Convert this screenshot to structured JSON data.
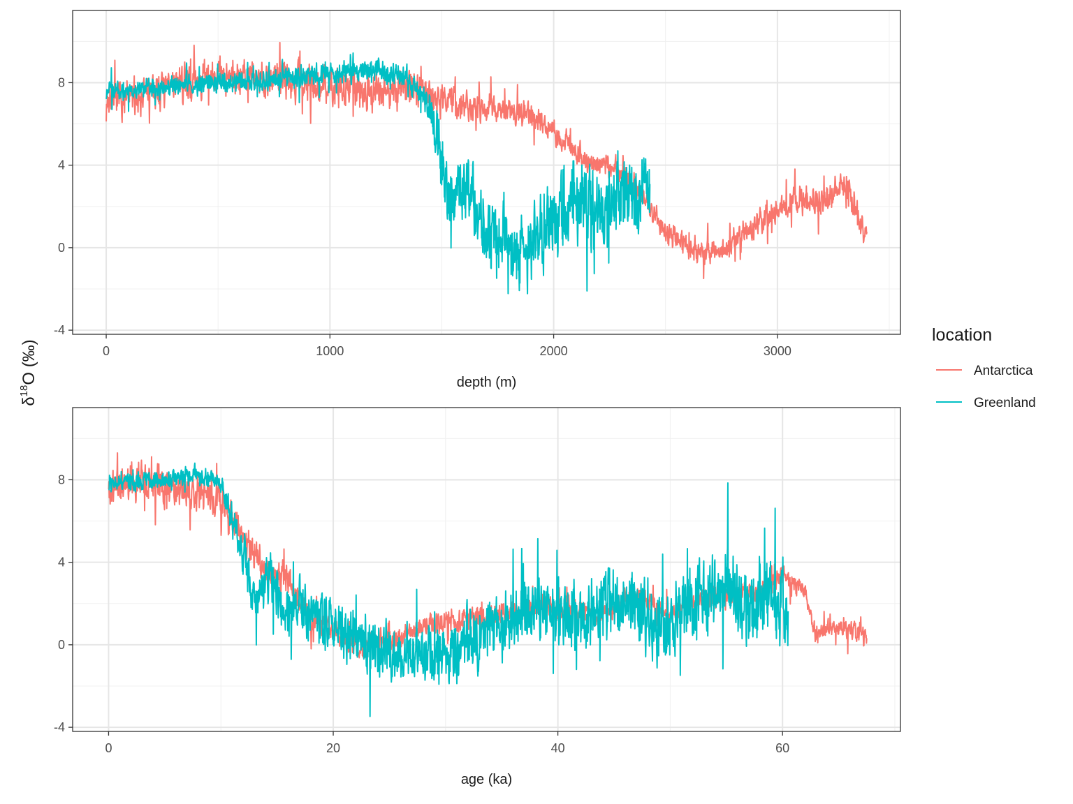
{
  "chart_data": {
    "shared_ylabel": {
      "symbol": "δ",
      "superscript": "18",
      "rest": "O (‰)"
    },
    "legend": {
      "title": "location",
      "placement": "right",
      "entries": [
        {
          "label": "Antarctica",
          "color": "#F8766D"
        },
        {
          "label": "Greenland",
          "color": "#00BFC4"
        }
      ]
    },
    "panels": [
      {
        "type": "line",
        "xlabel": "depth (m)",
        "xlim": [
          -150,
          3550
        ],
        "ylim": [
          -4.2,
          11.5
        ],
        "xticks": [
          0,
          1000,
          2000,
          3000
        ],
        "xtick_labels": [
          "0",
          "1000",
          "2000",
          "3000"
        ],
        "yticks": [
          -4,
          0,
          4,
          8
        ],
        "ytick_labels": [
          "-4",
          "0",
          "4",
          "8"
        ],
        "grid": true,
        "series": [
          {
            "name": "Antarctica",
            "color": "#F8766D",
            "x_start": 0,
            "x_end": 3400,
            "trend": [
              [
                0,
                7.0
              ],
              [
                300,
                7.9
              ],
              [
                600,
                8.4
              ],
              [
                900,
                8.1
              ],
              [
                1100,
                7.6
              ],
              [
                1350,
                7.8
              ],
              [
                1600,
                6.9
              ],
              [
                1900,
                6.5
              ],
              [
                2050,
                5.2
              ],
              [
                2150,
                4.2
              ],
              [
                2300,
                3.8
              ],
              [
                2420,
                2.2
              ],
              [
                2500,
                0.8
              ],
              [
                2650,
                -0.3
              ],
              [
                2750,
                -0.2
              ],
              [
                2900,
                1.2
              ],
              [
                3000,
                1.8
              ],
              [
                3100,
                2.4
              ],
              [
                3200,
                2.1
              ],
              [
                3300,
                3.2
              ],
              [
                3370,
                1.2
              ],
              [
                3400,
                0.4
              ]
            ],
            "noise": [
              [
                0,
                0.9
              ],
              [
                1300,
                1.0
              ],
              [
                1500,
                0.8
              ],
              [
                2000,
                0.6
              ],
              [
                2450,
                0.6
              ],
              [
                3400,
                0.8
              ]
            ],
            "seed": 7,
            "n": 2200
          },
          {
            "name": "Greenland",
            "color": "#00BFC4",
            "x_start": 0,
            "x_end": 2430,
            "trend": [
              [
                0,
                7.6
              ],
              [
                400,
                7.9
              ],
              [
                900,
                8.3
              ],
              [
                1200,
                8.6
              ],
              [
                1350,
                8.2
              ],
              [
                1440,
                7.0
              ],
              [
                1500,
                4.2
              ],
              [
                1530,
                2.0
              ],
              [
                1600,
                3.0
              ],
              [
                1700,
                0.8
              ],
              [
                1850,
                -0.5
              ],
              [
                1950,
                0.8
              ],
              [
                2000,
                1.5
              ],
              [
                2100,
                2.4
              ],
              [
                2200,
                1.2
              ],
              [
                2300,
                2.6
              ],
              [
                2400,
                2.8
              ],
              [
                2430,
                3.0
              ]
            ],
            "noise": [
              [
                0,
                0.45
              ],
              [
                1400,
                0.55
              ],
              [
                1500,
                1.5
              ],
              [
                1700,
                1.8
              ],
              [
                2100,
                2.0
              ],
              [
                2430,
                2.0
              ]
            ],
            "seed": 23,
            "n": 1800
          }
        ]
      },
      {
        "type": "line",
        "xlabel": "age (ka)",
        "xlim": [
          -3.2,
          70.5
        ],
        "ylim": [
          -4.2,
          11.5
        ],
        "xticks": [
          0,
          20,
          40,
          60
        ],
        "xtick_labels": [
          "0",
          "20",
          "40",
          "60"
        ],
        "yticks": [
          -4,
          0,
          4,
          8
        ],
        "ytick_labels": [
          "-4",
          "0",
          "4",
          "8"
        ],
        "grid": true,
        "series": [
          {
            "name": "Antarctica",
            "color": "#F8766D",
            "x_start": 0,
            "x_end": 67.5,
            "trend": [
              [
                0,
                7.5
              ],
              [
                3,
                8.2
              ],
              [
                6,
                7.6
              ],
              [
                10,
                7.0
              ],
              [
                12,
                5.2
              ],
              [
                14,
                3.6
              ],
              [
                16,
                3.2
              ],
              [
                18,
                1.2
              ],
              [
                20,
                0.8
              ],
              [
                22,
                -0.2
              ],
              [
                25,
                0.3
              ],
              [
                29,
                1.0
              ],
              [
                32,
                1.2
              ],
              [
                35,
                1.4
              ],
              [
                38,
                1.9
              ],
              [
                40,
                1.7
              ],
              [
                44,
                1.5
              ],
              [
                47,
                2.4
              ],
              [
                50,
                1.4
              ],
              [
                53,
                2.4
              ],
              [
                55,
                2.5
              ],
              [
                58,
                2.6
              ],
              [
                60,
                3.4
              ],
              [
                62,
                2.5
              ],
              [
                63,
                0.5
              ],
              [
                65,
                0.9
              ],
              [
                67,
                0.6
              ],
              [
                67.5,
                0.2
              ]
            ],
            "noise": [
              [
                0,
                1.0
              ],
              [
                12,
                0.8
              ],
              [
                20,
                0.6
              ],
              [
                60,
                0.5
              ],
              [
                67.5,
                0.5
              ]
            ],
            "seed": 11,
            "n": 2400
          },
          {
            "name": "Greenland",
            "color": "#00BFC4",
            "x_start": 0,
            "x_end": 60.5,
            "trend": [
              [
                0,
                7.8
              ],
              [
                5,
                8.0
              ],
              [
                8,
                8.2
              ],
              [
                10,
                7.8
              ],
              [
                12,
                4.5
              ],
              [
                13,
                2.2
              ],
              [
                14.5,
                3.4
              ],
              [
                15.5,
                1.8
              ],
              [
                18,
                1.4
              ],
              [
                22,
                0.2
              ],
              [
                26,
                -0.6
              ],
              [
                30,
                -0.3
              ],
              [
                34,
                0.6
              ],
              [
                38,
                1.8
              ],
              [
                42,
                1.2
              ],
              [
                46,
                2.4
              ],
              [
                48,
                1.2
              ],
              [
                50,
                0.9
              ],
              [
                53,
                2.8
              ],
              [
                55,
                2.6
              ],
              [
                57,
                1.6
              ],
              [
                59,
                2.8
              ],
              [
                60.5,
                1.2
              ]
            ],
            "noise": [
              [
                0,
                0.45
              ],
              [
                10,
                0.5
              ],
              [
                12,
                1.2
              ],
              [
                20,
                1.4
              ],
              [
                60.5,
                2.0
              ]
            ],
            "seed": 29,
            "n": 2200
          }
        ]
      }
    ]
  }
}
